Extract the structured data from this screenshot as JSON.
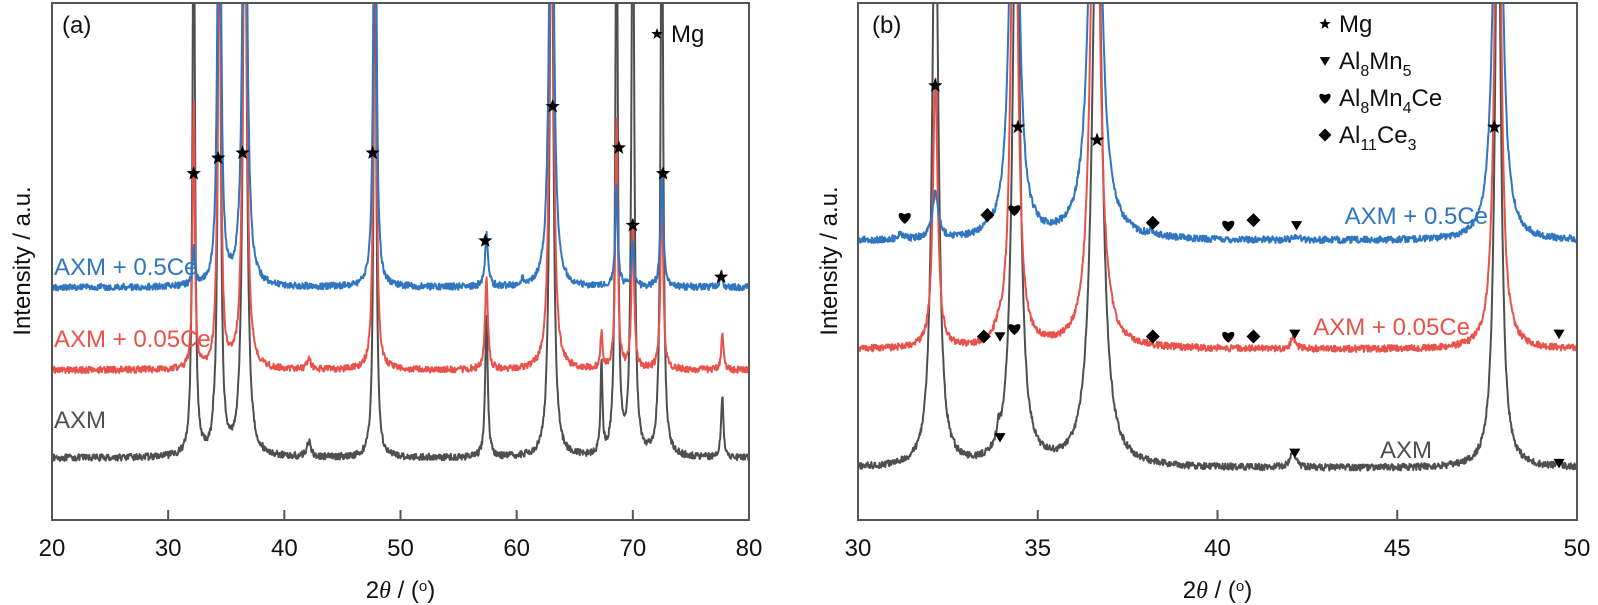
{
  "colors": {
    "AXM": "#4d4f50",
    "AXM + 0.05Ce": "#e8524a",
    "AXM + 0.5Ce": "#2f75c0",
    "axis": "#555555"
  },
  "chart_data": [
    {
      "type": "line",
      "panel": "(a)",
      "title": "",
      "xlabel": "2θ / (°)",
      "xlabel_parts": {
        "prefix": "2",
        "theta": "θ",
        "suffix": " / (",
        "degree": "o",
        "close": ")"
      },
      "ylabel": "Intensity / a.u.",
      "xlim": [
        20,
        80
      ],
      "xticks": [
        20,
        30,
        40,
        50,
        60,
        70,
        80
      ],
      "ylim": [
        0,
        100
      ],
      "grid": false,
      "legend": {
        "placement": "top-right",
        "entries": [
          {
            "marker": "star",
            "label": "Mg"
          }
        ]
      },
      "series": [
        {
          "name": "AXM + 0.5Ce",
          "label_text": "AXM + 0.5Ce",
          "baseline": 45,
          "peaks": [
            [
              32.2,
              7,
              0.12
            ],
            [
              34.4,
              120,
              0.15
            ],
            [
              36.6,
              120,
              0.2
            ],
            [
              47.8,
              120,
              0.13
            ],
            [
              57.4,
              10,
              0.15
            ],
            [
              63.0,
              120,
              0.2
            ],
            [
              68.6,
              20,
              0.13
            ],
            [
              70.0,
              8,
              0.13
            ],
            [
              72.5,
              22,
              0.14
            ],
            [
              77.6,
              3,
              0.12
            ],
            [
              60.5,
              1.5,
              0.08
            ]
          ]
        },
        {
          "name": "AXM + 0.05Ce",
          "label_text": "AXM + 0.05Ce",
          "baseline": 29,
          "peaks": [
            [
              32.2,
              52,
              0.11
            ],
            [
              34.4,
              120,
              0.13
            ],
            [
              36.6,
              120,
              0.18
            ],
            [
              47.8,
              120,
              0.12
            ],
            [
              57.4,
              18,
              0.14
            ],
            [
              63.0,
              120,
              0.18
            ],
            [
              67.3,
              7,
              0.1
            ],
            [
              68.6,
              48,
              0.12
            ],
            [
              70.0,
              28,
              0.13
            ],
            [
              72.5,
              36,
              0.13
            ],
            [
              77.7,
              7,
              0.12
            ],
            [
              42.1,
              2,
              0.2
            ]
          ]
        },
        {
          "name": "AXM",
          "label_text": "AXM",
          "baseline": 12,
          "peaks": [
            [
              32.2,
              120,
              0.12
            ],
            [
              34.4,
              120,
              0.14
            ],
            [
              36.6,
              120,
              0.2
            ],
            [
              47.8,
              120,
              0.12
            ],
            [
              57.4,
              28,
              0.13
            ],
            [
              63.0,
              120,
              0.18
            ],
            [
              67.3,
              18,
              0.1
            ],
            [
              68.6,
              120,
              0.12
            ],
            [
              70.0,
              120,
              0.14
            ],
            [
              72.5,
              120,
              0.13
            ],
            [
              77.7,
              12,
              0.12
            ],
            [
              42.1,
              3,
              0.2
            ],
            [
              33.9,
              2,
              0.1
            ]
          ]
        }
      ],
      "annotations": [
        {
          "marker": "star",
          "phase": "Mg",
          "x": 32.2,
          "y": 67
        },
        {
          "marker": "star",
          "phase": "Mg",
          "x": 34.3,
          "y": 70
        },
        {
          "marker": "star",
          "phase": "Mg",
          "x": 36.4,
          "y": 71
        },
        {
          "marker": "star",
          "phase": "Mg",
          "x": 47.6,
          "y": 71
        },
        {
          "marker": "star",
          "phase": "Mg",
          "x": 57.3,
          "y": 54
        },
        {
          "marker": "star",
          "phase": "Mg",
          "x": 63.1,
          "y": 80
        },
        {
          "marker": "star",
          "phase": "Mg",
          "x": 68.8,
          "y": 72
        },
        {
          "marker": "star",
          "phase": "Mg",
          "x": 70.0,
          "y": 57
        },
        {
          "marker": "star",
          "phase": "Mg",
          "x": 72.6,
          "y": 67
        },
        {
          "marker": "star",
          "phase": "Mg",
          "x": 77.6,
          "y": 47
        }
      ]
    },
    {
      "type": "line",
      "panel": "(b)",
      "title": "",
      "xlabel": "2θ / (°)",
      "xlabel_parts": {
        "prefix": "2",
        "theta": "θ",
        "suffix": " / (",
        "degree": "o",
        "close": ")"
      },
      "ylabel": "Intensity / a.u.",
      "xlim": [
        30,
        50
      ],
      "xticks": [
        30,
        35,
        40,
        45,
        50
      ],
      "ylim": [
        0,
        100
      ],
      "grid": false,
      "legend": {
        "placement": "top-right",
        "entries": [
          {
            "marker": "star",
            "label": "Mg",
            "sub": []
          },
          {
            "marker": "triangle-down",
            "label": "Al8Mn5",
            "parts": [
              [
                "Al",
                ""
              ],
              [
                "8",
                "sub"
              ],
              [
                "Mn",
                ""
              ],
              [
                "5",
                "sub"
              ]
            ]
          },
          {
            "marker": "heart",
            "label": "Al8Mn4Ce",
            "parts": [
              [
                "Al",
                ""
              ],
              [
                "8",
                "sub"
              ],
              [
                "Mn",
                ""
              ],
              [
                "4",
                "sub"
              ],
              [
                "Ce",
                ""
              ]
            ]
          },
          {
            "marker": "diamond",
            "label": "Al11Ce3",
            "parts": [
              [
                "Al",
                ""
              ],
              [
                "11",
                "sub"
              ],
              [
                "Ce",
                ""
              ],
              [
                "3",
                "sub"
              ]
            ]
          }
        ]
      },
      "series": [
        {
          "name": "AXM + 0.5Ce",
          "label_text": "AXM + 0.5Ce",
          "baseline": 54,
          "peaks": [
            [
              32.15,
              9,
              0.1
            ],
            [
              34.35,
              120,
              0.12
            ],
            [
              36.6,
              120,
              0.16
            ],
            [
              47.8,
              120,
              0.12
            ],
            [
              31.2,
              1,
              0.1
            ],
            [
              33.6,
              1,
              0.1
            ],
            [
              38.2,
              0.8,
              0.1
            ],
            [
              42.2,
              0.8,
              0.1
            ]
          ]
        },
        {
          "name": "AXM + 0.05Ce",
          "label_text": "AXM + 0.05Ce",
          "baseline": 33,
          "peaks": [
            [
              32.15,
              52,
              0.08
            ],
            [
              34.35,
              120,
              0.1
            ],
            [
              36.6,
              120,
              0.14
            ],
            [
              47.8,
              120,
              0.1
            ],
            [
              42.1,
              2.5,
              0.07
            ],
            [
              33.9,
              1.5,
              0.1
            ]
          ]
        },
        {
          "name": "AXM",
          "label_text": "AXM",
          "baseline": 10,
          "peaks": [
            [
              32.15,
              120,
              0.1
            ],
            [
              34.4,
              120,
              0.12
            ],
            [
              36.65,
              120,
              0.16
            ],
            [
              47.8,
              120,
              0.1
            ],
            [
              33.9,
              3,
              0.04
            ],
            [
              42.1,
              3,
              0.1
            ],
            [
              49.5,
              1,
              0.06
            ]
          ]
        }
      ],
      "annotations": [
        {
          "marker": "star",
          "phase": "Mg",
          "x": 32.15,
          "y": 84
        },
        {
          "marker": "star",
          "phase": "Mg",
          "x": 34.45,
          "y": 76
        },
        {
          "marker": "star",
          "phase": "Mg",
          "x": 36.65,
          "y": 73.5
        },
        {
          "marker": "star",
          "phase": "Mg",
          "x": 47.7,
          "y": 76
        },
        {
          "marker": "heart",
          "phase": "Al8Mn4Ce",
          "x": 31.3,
          "y": 58.5
        },
        {
          "marker": "diamond",
          "phase": "Al11Ce3",
          "x": 33.6,
          "y": 59
        },
        {
          "marker": "heart",
          "phase": "Al8Mn4Ce",
          "x": 34.35,
          "y": 60
        },
        {
          "marker": "diamond",
          "phase": "Al11Ce3",
          "x": 38.2,
          "y": 57.5
        },
        {
          "marker": "heart",
          "phase": "Al8Mn4Ce",
          "x": 40.3,
          "y": 57
        },
        {
          "marker": "diamond",
          "phase": "Al11Ce3",
          "x": 41.0,
          "y": 58
        },
        {
          "marker": "triangle-down",
          "phase": "Al8Mn5",
          "x": 42.2,
          "y": 57
        },
        {
          "marker": "diamond",
          "phase": "Al11Ce3",
          "x": 33.5,
          "y": 35.5
        },
        {
          "marker": "triangle-down",
          "phase": "Al8Mn5",
          "x": 33.95,
          "y": 35.5
        },
        {
          "marker": "heart",
          "phase": "Al8Mn4Ce",
          "x": 34.35,
          "y": 37
        },
        {
          "marker": "diamond",
          "phase": "Al11Ce3",
          "x": 38.2,
          "y": 35.5
        },
        {
          "marker": "heart",
          "phase": "Al8Mn4Ce",
          "x": 40.3,
          "y": 35.5
        },
        {
          "marker": "diamond",
          "phase": "Al11Ce3",
          "x": 41.0,
          "y": 35.5
        },
        {
          "marker": "triangle-down",
          "phase": "Al8Mn5",
          "x": 42.15,
          "y": 36
        },
        {
          "marker": "triangle-down",
          "phase": "Al8Mn5",
          "x": 49.5,
          "y": 36
        },
        {
          "marker": "triangle-down",
          "phase": "Al8Mn5",
          "x": 33.95,
          "y": 16
        },
        {
          "marker": "triangle-down",
          "phase": "Al8Mn5",
          "x": 42.15,
          "y": 13
        },
        {
          "marker": "triangle-down",
          "phase": "Al8Mn5",
          "x": 49.5,
          "y": 11
        }
      ]
    }
  ]
}
